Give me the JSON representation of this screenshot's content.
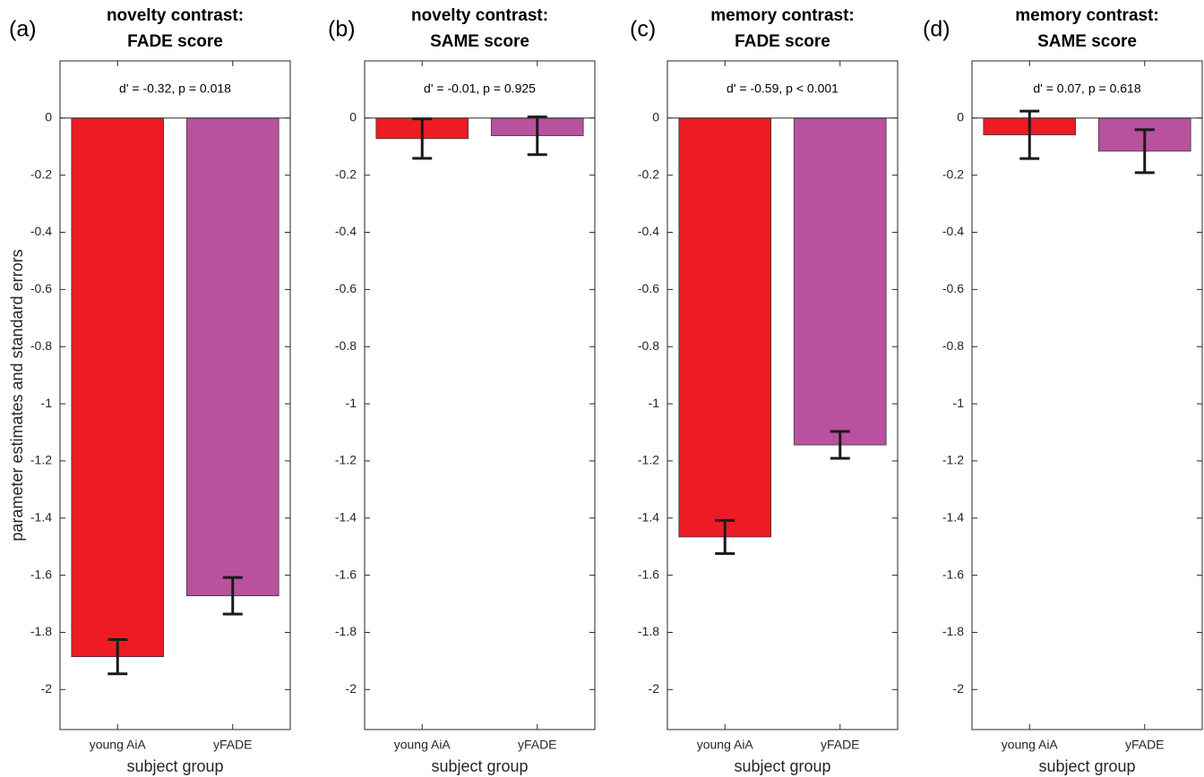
{
  "chart_data": [
    {
      "type": "bar",
      "panel_label": "(a)",
      "title": [
        "novelty contrast:",
        "FADE score"
      ],
      "annotation": "d' = -0.32, p = 0.018",
      "xlabel": "subject group",
      "ylabel": "parameter estimates and standard errors",
      "categories": [
        "young AiA",
        "yFADE"
      ],
      "values": [
        -1.885,
        -1.672
      ],
      "errors": [
        0.06,
        0.064
      ],
      "colors": [
        "#ed1c24",
        "#b8529e"
      ],
      "ylim": [
        -2.14,
        0.2
      ],
      "yticks": [
        0,
        -0.2,
        -0.4,
        -0.6,
        -0.8,
        -1,
        -1.2,
        -1.4,
        -1.6,
        -1.8,
        -2
      ]
    },
    {
      "type": "bar",
      "panel_label": "(b)",
      "title": [
        "novelty contrast:",
        "SAME score"
      ],
      "annotation": "d' = -0.01, p = 0.925",
      "xlabel": "subject group",
      "categories": [
        "young AiA",
        "yFADE"
      ],
      "values": [
        -0.072,
        -0.062
      ],
      "errors": [
        0.069,
        0.066
      ],
      "colors": [
        "#ed1c24",
        "#b8529e"
      ],
      "ylim": [
        -2.14,
        0.2
      ],
      "yticks": [
        0,
        -0.2,
        -0.4,
        -0.6,
        -0.8,
        -1,
        -1.2,
        -1.4,
        -1.6,
        -1.8,
        -2
      ]
    },
    {
      "type": "bar",
      "panel_label": "(c)",
      "title": [
        "memory contrast:",
        "FADE score"
      ],
      "annotation": "d' = -0.59, p < 0.001",
      "xlabel": "subject group",
      "categories": [
        "young AiA",
        "yFADE"
      ],
      "values": [
        -1.466,
        -1.144
      ],
      "errors": [
        0.058,
        0.047
      ],
      "colors": [
        "#ed1c24",
        "#b8529e"
      ],
      "ylim": [
        -2.14,
        0.2
      ],
      "yticks": [
        0,
        -0.2,
        -0.4,
        -0.6,
        -0.8,
        -1,
        -1.2,
        -1.4,
        -1.6,
        -1.8,
        -2
      ]
    },
    {
      "type": "bar",
      "panel_label": "(d)",
      "title": [
        "memory contrast:",
        "SAME score"
      ],
      "annotation": "d' = 0.07, p = 0.618",
      "xlabel": "subject group",
      "categories": [
        "young AiA",
        "yFADE"
      ],
      "values": [
        -0.059,
        -0.116
      ],
      "errors": [
        0.083,
        0.075
      ],
      "colors": [
        "#ed1c24",
        "#b8529e"
      ],
      "ylim": [
        -2.14,
        0.2
      ],
      "yticks": [
        0,
        -0.2,
        -0.4,
        -0.6,
        -0.8,
        -1,
        -1.2,
        -1.4,
        -1.6,
        -1.8,
        -2
      ]
    }
  ]
}
